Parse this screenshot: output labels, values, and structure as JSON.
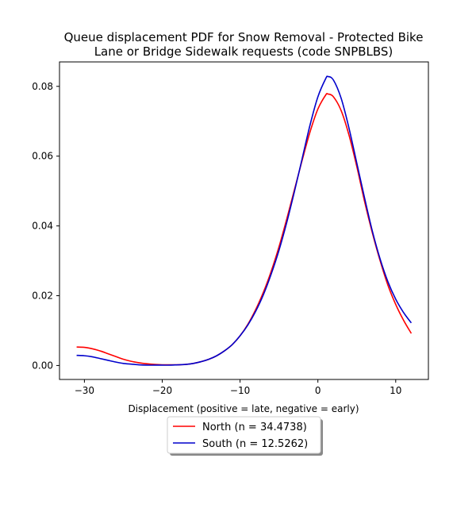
{
  "chart_data": {
    "type": "line",
    "title_lines": [
      "Queue displacement PDF for Snow Removal - Protected Bike",
      "Lane or Bridge Sidewalk  requests (code SNPBLBS)"
    ],
    "xlabel": "Displacement (positive = late, negative = early)",
    "ylabel": "",
    "xlim": [
      -33.2,
      14.2
    ],
    "ylim": [
      -0.004,
      0.087
    ],
    "xticks": [
      -30,
      -20,
      -10,
      0,
      10
    ],
    "yticks": [
      0.0,
      0.02,
      0.04,
      0.06,
      0.08
    ],
    "ytick_labels": [
      "0.00",
      "0.02",
      "0.04",
      "0.06",
      "0.08"
    ],
    "legend_position": "below-center",
    "series": [
      {
        "name": "North (n = 34.4738)",
        "color": "#ff0000",
        "x": [
          -31,
          -30,
          -29,
          -28,
          -27,
          -26,
          -25,
          -24,
          -23,
          -22,
          -21,
          -20,
          -19,
          -18,
          -17,
          -16,
          -15,
          -14,
          -13,
          -12,
          -11,
          -10,
          -9,
          -8,
          -7,
          -6,
          -5,
          -4,
          -3,
          -2,
          -1,
          0,
          1,
          1.3,
          2,
          3,
          4,
          5,
          6,
          7,
          8,
          9,
          10,
          11,
          12
        ],
        "y": [
          0.0053,
          0.0052,
          0.0048,
          0.0042,
          0.0034,
          0.0026,
          0.0018,
          0.0012,
          0.0008,
          0.0005,
          0.0003,
          0.0002,
          0.0002,
          0.0002,
          0.0003,
          0.0006,
          0.0011,
          0.0018,
          0.0028,
          0.0042,
          0.006,
          0.0085,
          0.0118,
          0.016,
          0.021,
          0.027,
          0.034,
          0.042,
          0.0505,
          0.059,
          0.067,
          0.0735,
          0.0775,
          0.0778,
          0.077,
          0.073,
          0.066,
          0.057,
          0.047,
          0.038,
          0.03,
          0.023,
          0.0175,
          0.013,
          0.0092
        ]
      },
      {
        "name": "South (n = 12.5262)",
        "color": "#0000cc",
        "x": [
          -31,
          -30,
          -29,
          -28,
          -27,
          -26,
          -25,
          -24,
          -23,
          -22,
          -21,
          -20,
          -19,
          -18,
          -17,
          -16,
          -15,
          -14,
          -13,
          -12,
          -11,
          -10,
          -9,
          -8,
          -7,
          -6,
          -5,
          -4,
          -3,
          -2,
          -1,
          0,
          1,
          1.3,
          2,
          3,
          4,
          5,
          6,
          7,
          8,
          9,
          10,
          11,
          12
        ],
        "y": [
          0.0029,
          0.0028,
          0.0025,
          0.002,
          0.0015,
          0.001,
          0.0006,
          0.0004,
          0.0002,
          0.0001,
          0.0001,
          0.0001,
          0.0001,
          0.0002,
          0.0003,
          0.0006,
          0.0011,
          0.0018,
          0.0028,
          0.0042,
          0.006,
          0.0085,
          0.0116,
          0.0155,
          0.0203,
          0.0262,
          0.033,
          0.041,
          0.05,
          0.0595,
          0.069,
          0.077,
          0.0822,
          0.0828,
          0.0818,
          0.0765,
          0.068,
          0.058,
          0.048,
          0.0385,
          0.0305,
          0.024,
          0.019,
          0.0152,
          0.0122
        ]
      }
    ]
  }
}
